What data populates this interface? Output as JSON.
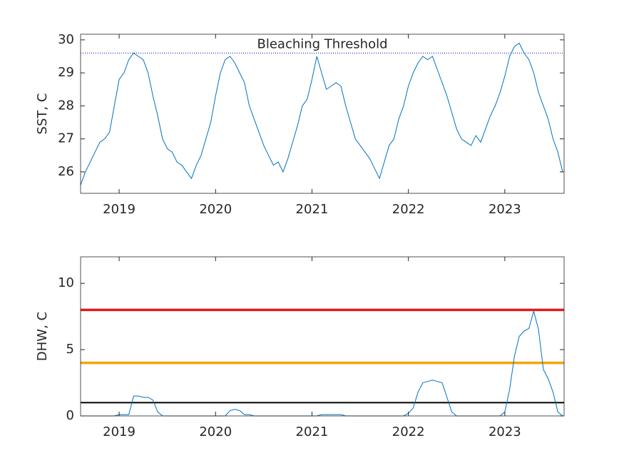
{
  "chart_data": [
    {
      "type": "line",
      "ylabel": "SST, C",
      "annotation": "Bleaching Threshold",
      "x": [
        2018.6,
        2018.65,
        2018.7,
        2018.75,
        2018.8,
        2018.85,
        2018.9,
        2018.95,
        2019.0,
        2019.05,
        2019.1,
        2019.15,
        2019.2,
        2019.25,
        2019.3,
        2019.35,
        2019.4,
        2019.45,
        2019.5,
        2019.55,
        2019.6,
        2019.65,
        2019.7,
        2019.75,
        2019.8,
        2019.85,
        2019.9,
        2019.95,
        2020.0,
        2020.05,
        2020.1,
        2020.15,
        2020.2,
        2020.25,
        2020.3,
        2020.35,
        2020.4,
        2020.45,
        2020.5,
        2020.55,
        2020.6,
        2020.65,
        2020.7,
        2020.75,
        2020.8,
        2020.85,
        2020.9,
        2020.95,
        2021.0,
        2021.05,
        2021.1,
        2021.15,
        2021.2,
        2021.25,
        2021.3,
        2021.35,
        2021.4,
        2021.45,
        2021.5,
        2021.55,
        2021.6,
        2021.65,
        2021.7,
        2021.75,
        2021.8,
        2021.85,
        2021.9,
        2021.95,
        2022.0,
        2022.05,
        2022.1,
        2022.15,
        2022.2,
        2022.25,
        2022.3,
        2022.35,
        2022.4,
        2022.45,
        2022.5,
        2022.55,
        2022.6,
        2022.65,
        2022.7,
        2022.75,
        2022.8,
        2022.85,
        2022.9,
        2022.95,
        2023.0,
        2023.05,
        2023.1,
        2023.15,
        2023.2,
        2023.25,
        2023.3,
        2023.35,
        2023.4,
        2023.45,
        2023.5,
        2023.55,
        2023.6
      ],
      "series": [
        {
          "color": "#0072bd",
          "values": [
            25.6,
            26.0,
            26.3,
            26.6,
            26.9,
            27.0,
            27.2,
            28.0,
            28.8,
            29.0,
            29.4,
            29.6,
            29.5,
            29.4,
            29.0,
            28.3,
            27.7,
            27.0,
            26.7,
            26.6,
            26.3,
            26.2,
            26.0,
            25.8,
            26.2,
            26.5,
            27.0,
            27.5,
            28.3,
            29.0,
            29.4,
            29.5,
            29.3,
            29.0,
            28.7,
            28.0,
            27.6,
            27.2,
            26.8,
            26.5,
            26.2,
            26.3,
            26.0,
            26.4,
            26.9,
            27.4,
            28.0,
            28.2,
            28.8,
            29.5,
            29.0,
            28.5,
            28.6,
            28.7,
            28.6,
            28.0,
            27.5,
            27.0,
            26.8,
            26.6,
            26.4,
            26.1,
            25.8,
            26.3,
            26.8,
            27.0,
            27.6,
            28.0,
            28.6,
            29.0,
            29.3,
            29.5,
            29.4,
            29.5,
            29.1,
            28.7,
            28.3,
            27.8,
            27.3,
            27.0,
            26.9,
            26.8,
            27.1,
            26.9,
            27.3,
            27.7,
            28.0,
            28.4,
            28.9,
            29.5,
            29.8,
            29.9,
            29.6,
            29.4,
            29.0,
            28.4,
            28.0,
            27.6,
            27.0,
            26.6,
            26.0
          ]
        }
      ],
      "thresholds": [
        {
          "value": 29.6,
          "color": "#0000c0",
          "width": 1,
          "dash": "1 2"
        }
      ],
      "xlim": [
        2018.6,
        2023.615
      ],
      "xticks": [
        2019,
        2020,
        2021,
        2022,
        2023
      ],
      "ylim": [
        25.35,
        30.17
      ],
      "yticks": [
        26,
        27,
        28,
        29,
        30
      ]
    },
    {
      "type": "line",
      "ylabel": "DHW, C",
      "x": [
        2018.6,
        2018.65,
        2018.7,
        2018.75,
        2018.8,
        2018.85,
        2018.9,
        2018.95,
        2019.0,
        2019.05,
        2019.1,
        2019.15,
        2019.2,
        2019.25,
        2019.3,
        2019.35,
        2019.4,
        2019.45,
        2019.5,
        2019.55,
        2019.6,
        2019.65,
        2019.7,
        2019.75,
        2019.8,
        2019.85,
        2019.9,
        2019.95,
        2020.0,
        2020.05,
        2020.1,
        2020.15,
        2020.2,
        2020.25,
        2020.3,
        2020.35,
        2020.4,
        2020.45,
        2020.5,
        2020.55,
        2020.6,
        2020.65,
        2020.7,
        2020.75,
        2020.8,
        2020.85,
        2020.9,
        2020.95,
        2021.0,
        2021.05,
        2021.1,
        2021.15,
        2021.2,
        2021.25,
        2021.3,
        2021.35,
        2021.4,
        2021.45,
        2021.5,
        2021.55,
        2021.6,
        2021.65,
        2021.7,
        2021.75,
        2021.8,
        2021.85,
        2021.9,
        2021.95,
        2022.0,
        2022.05,
        2022.1,
        2022.15,
        2022.2,
        2022.25,
        2022.3,
        2022.35,
        2022.4,
        2022.45,
        2022.5,
        2022.55,
        2022.6,
        2022.65,
        2022.7,
        2022.75,
        2022.8,
        2022.85,
        2022.9,
        2022.95,
        2023.0,
        2023.05,
        2023.1,
        2023.15,
        2023.2,
        2023.25,
        2023.3,
        2023.35,
        2023.4,
        2023.45,
        2023.5,
        2023.55,
        2023.6
      ],
      "series": [
        {
          "color": "#0072bd",
          "values": [
            0,
            0,
            0,
            0,
            0,
            0,
            0,
            0,
            0.1,
            0.1,
            0.1,
            1.5,
            1.5,
            1.4,
            1.4,
            1.2,
            0.3,
            0,
            0,
            0,
            0,
            0,
            0,
            0,
            0,
            0,
            0,
            0,
            0,
            0,
            0,
            0.4,
            0.5,
            0.4,
            0.1,
            0.1,
            0,
            0,
            0,
            0,
            0,
            0,
            0,
            0,
            0,
            0,
            0,
            0,
            0,
            0,
            0.1,
            0.1,
            0.1,
            0.1,
            0.1,
            0,
            0,
            0,
            0,
            0,
            0,
            0,
            0,
            0,
            0,
            0,
            0,
            0,
            0.2,
            0.6,
            1.8,
            2.5,
            2.6,
            2.7,
            2.6,
            2.5,
            1.4,
            0.3,
            0,
            0,
            0,
            0,
            0,
            0,
            0,
            0,
            0,
            0,
            0.3,
            2.0,
            4.5,
            6.0,
            6.4,
            6.6,
            7.9,
            6.5,
            3.5,
            2.8,
            1.8,
            0.3,
            0
          ]
        }
      ],
      "thresholds": [
        {
          "value": 8,
          "color": "#e41a1c",
          "width": 3.5
        },
        {
          "value": 4,
          "color": "#f5a300",
          "width": 3.5
        },
        {
          "value": 1,
          "color": "#000000",
          "width": 2
        }
      ],
      "xlim": [
        2018.6,
        2023.615
      ],
      "xticks": [
        2019,
        2020,
        2021,
        2022,
        2023
      ],
      "ylim": [
        0,
        12
      ],
      "yticks": [
        0,
        5,
        10
      ]
    }
  ]
}
